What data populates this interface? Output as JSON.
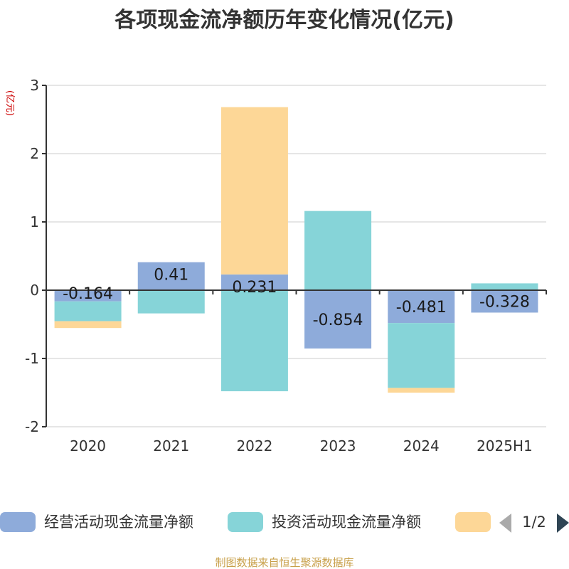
{
  "chart_data": {
    "type": "bar",
    "stacked": true,
    "title": "各项现金流净额历年变化情况(亿元)",
    "ylabel": "(亿元)",
    "categories": [
      "2020",
      "2021",
      "2022",
      "2023",
      "2024",
      "2025H1"
    ],
    "ylim": [
      -2,
      3
    ],
    "yticks": [
      3,
      2,
      1,
      0,
      -1,
      -2
    ],
    "grid": true,
    "series": [
      {
        "name": "经营活动现金流量净额",
        "color": "#8eabda",
        "values": [
          -0.164,
          0.41,
          0.231,
          -0.854,
          -0.481,
          -0.328
        ],
        "labels": [
          "-0.164",
          "0.41",
          "0.231",
          "-0.854",
          "-0.481",
          "-0.328"
        ]
      },
      {
        "name": "投资活动现金流量净额",
        "color": "#86d4d8",
        "values": [
          -0.29,
          -0.34,
          -1.48,
          1.16,
          -0.95,
          0.1
        ]
      },
      {
        "name": "",
        "color": "#fdd797",
        "values": [
          -0.1,
          0.0,
          2.45,
          0.0,
          -0.07,
          0.0
        ]
      }
    ],
    "legend": {
      "position": "bottom",
      "page": "1/2"
    }
  },
  "footer": {
    "source": "制图数据来自恒生聚源数据库"
  }
}
